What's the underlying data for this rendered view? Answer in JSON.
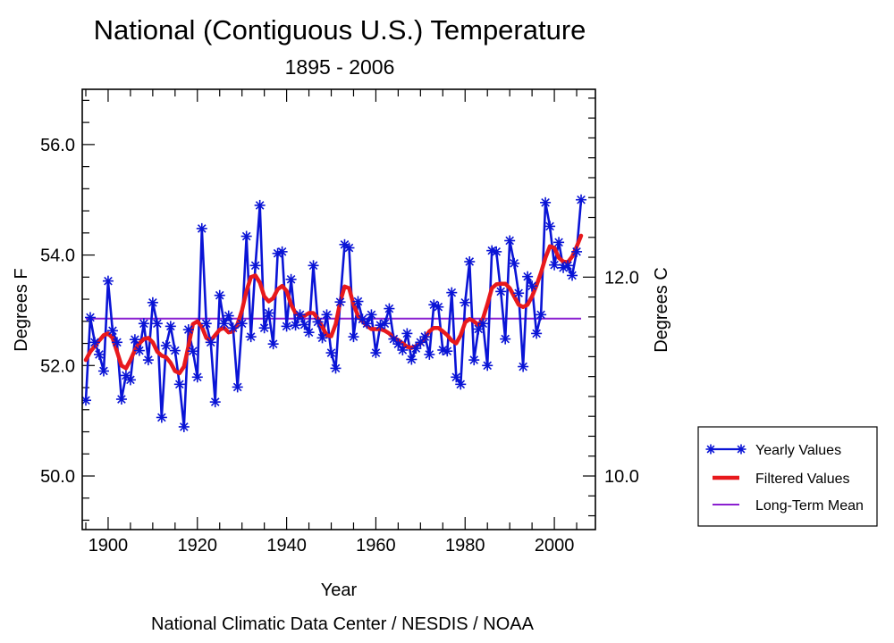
{
  "chart_data": {
    "type": "line",
    "title": "National (Contiguous U.S.) Temperature",
    "subtitle": "1895 - 2006",
    "xlabel": "Year",
    "ylabel": "Degrees F",
    "ylabel_right": "Degrees C",
    "credit": "National Climatic Data Center / NESDIS / NOAA",
    "xlim": [
      1894.2,
      2009.2
    ],
    "ylim": [
      49.03,
      57.0
    ],
    "x_ticks": [
      1900,
      1920,
      1940,
      1960,
      1980,
      2000
    ],
    "x_tick_labels": [
      "1900",
      "1920",
      "1940",
      "1960",
      "1980",
      "2000"
    ],
    "x_minor_step": 5,
    "y_ticks": [
      50.0,
      52.0,
      54.0,
      56.0
    ],
    "y_tick_labels": [
      "50.0",
      "52.0",
      "54.0",
      "56.0"
    ],
    "y_minor_step": 0.4,
    "y_right_ticks_c": [
      10.0,
      12.0
    ],
    "y_right_tick_labels": [
      "10.0",
      "12.0"
    ],
    "y_right_minor_step_c": 0.2,
    "grid": false,
    "legend": {
      "position": "right",
      "entries": [
        {
          "label": "Yearly Values",
          "color": "#0a14d6",
          "style": "line-star"
        },
        {
          "label": "Filtered Values",
          "color": "#e8191c",
          "style": "thick-line"
        },
        {
          "label": "Long-Term Mean",
          "color": "#8a1fd0",
          "style": "thin-line"
        }
      ]
    },
    "series": [
      {
        "name": "Yearly Values",
        "color": "#0a14d6",
        "x": [
          1895,
          1896,
          1897,
          1898,
          1899,
          1900,
          1901,
          1902,
          1903,
          1904,
          1905,
          1906,
          1907,
          1908,
          1909,
          1910,
          1911,
          1912,
          1913,
          1914,
          1915,
          1916,
          1917,
          1918,
          1919,
          1920,
          1921,
          1922,
          1923,
          1924,
          1925,
          1926,
          1927,
          1928,
          1929,
          1930,
          1931,
          1932,
          1933,
          1934,
          1935,
          1936,
          1937,
          1938,
          1939,
          1940,
          1941,
          1942,
          1943,
          1944,
          1945,
          1946,
          1947,
          1948,
          1949,
          1950,
          1951,
          1952,
          1953,
          1954,
          1955,
          1956,
          1957,
          1958,
          1959,
          1960,
          1961,
          1962,
          1963,
          1964,
          1965,
          1966,
          1967,
          1968,
          1969,
          1970,
          1971,
          1972,
          1973,
          1974,
          1975,
          1976,
          1977,
          1978,
          1979,
          1980,
          1981,
          1982,
          1983,
          1984,
          1985,
          1986,
          1987,
          1988,
          1989,
          1990,
          1991,
          1992,
          1993,
          1994,
          1995,
          1996,
          1997,
          1998,
          1999,
          2000,
          2001,
          2002,
          2003,
          2004,
          2005,
          2006
        ],
        "values": [
          51.37,
          52.87,
          52.42,
          52.2,
          51.9,
          53.53,
          52.63,
          52.42,
          51.39,
          51.82,
          51.74,
          52.47,
          52.27,
          52.76,
          52.1,
          53.14,
          52.76,
          51.06,
          52.36,
          52.71,
          52.27,
          51.66,
          50.89,
          52.65,
          52.26,
          51.79,
          54.48,
          52.76,
          52.42,
          51.34,
          53.27,
          52.76,
          52.9,
          52.68,
          51.61,
          52.76,
          54.34,
          52.52,
          53.81,
          54.9,
          52.68,
          52.95,
          52.39,
          54.03,
          54.06,
          52.71,
          53.56,
          52.73,
          52.92,
          52.74,
          52.6,
          53.81,
          52.79,
          52.5,
          52.92,
          52.23,
          51.95,
          53.15,
          54.19,
          54.13,
          52.52,
          53.16,
          52.84,
          52.76,
          52.92,
          52.23,
          52.73,
          52.76,
          53.03,
          52.48,
          52.39,
          52.28,
          52.58,
          52.11,
          52.31,
          52.42,
          52.52,
          52.2,
          53.1,
          53.06,
          52.28,
          52.26,
          53.32,
          51.79,
          51.66,
          53.14,
          53.88,
          52.1,
          52.66,
          52.76,
          52.0,
          54.08,
          54.06,
          53.34,
          52.48,
          54.26,
          53.85,
          53.31,
          51.98,
          53.61,
          53.44,
          52.58,
          52.92,
          54.95,
          54.52,
          53.82,
          54.23,
          53.77,
          53.81,
          53.63,
          54.06,
          55.0
        ]
      },
      {
        "name": "Filtered Values",
        "color": "#e8191c",
        "x": [
          1895,
          1896,
          1897,
          1898,
          1899,
          1900,
          1901,
          1902,
          1903,
          1904,
          1905,
          1906,
          1907,
          1908,
          1909,
          1910,
          1911,
          1912,
          1913,
          1914,
          1915,
          1916,
          1917,
          1918,
          1919,
          1920,
          1921,
          1922,
          1923,
          1924,
          1925,
          1926,
          1927,
          1928,
          1929,
          1930,
          1931,
          1932,
          1933,
          1934,
          1935,
          1936,
          1937,
          1938,
          1939,
          1940,
          1941,
          1942,
          1943,
          1944,
          1945,
          1946,
          1947,
          1948,
          1949,
          1950,
          1951,
          1952,
          1953,
          1954,
          1955,
          1956,
          1957,
          1958,
          1959,
          1960,
          1961,
          1962,
          1963,
          1964,
          1965,
          1966,
          1967,
          1968,
          1969,
          1970,
          1971,
          1972,
          1973,
          1974,
          1975,
          1976,
          1977,
          1978,
          1979,
          1980,
          1981,
          1982,
          1983,
          1984,
          1985,
          1986,
          1987,
          1988,
          1989,
          1990,
          1991,
          1992,
          1993,
          1994,
          1995,
          1996,
          1997,
          1998,
          1999,
          2000,
          2001,
          2002,
          2003,
          2004,
          2005,
          2006
        ],
        "values": [
          52.1,
          52.25,
          52.35,
          52.45,
          52.55,
          52.58,
          52.5,
          52.25,
          52.0,
          51.95,
          52.1,
          52.28,
          52.4,
          52.48,
          52.5,
          52.42,
          52.25,
          52.18,
          52.15,
          52.05,
          51.9,
          51.86,
          51.98,
          52.35,
          52.75,
          52.8,
          52.7,
          52.5,
          52.45,
          52.55,
          52.65,
          52.68,
          52.6,
          52.62,
          52.75,
          53.0,
          53.35,
          53.6,
          53.63,
          53.5,
          53.25,
          53.16,
          53.22,
          53.38,
          53.44,
          53.35,
          53.1,
          52.95,
          52.9,
          52.9,
          52.95,
          52.95,
          52.85,
          52.7,
          52.55,
          52.53,
          52.75,
          53.15,
          53.43,
          53.4,
          53.1,
          52.9,
          52.8,
          52.72,
          52.66,
          52.66,
          52.66,
          52.63,
          52.58,
          52.5,
          52.46,
          52.4,
          52.34,
          52.32,
          52.35,
          52.4,
          52.5,
          52.62,
          52.68,
          52.68,
          52.62,
          52.55,
          52.45,
          52.4,
          52.55,
          52.78,
          52.84,
          52.8,
          52.73,
          52.85,
          53.11,
          53.4,
          53.47,
          53.48,
          53.48,
          53.4,
          53.25,
          53.1,
          53.06,
          53.1,
          53.25,
          53.45,
          53.68,
          53.95,
          54.16,
          54.13,
          53.95,
          53.88,
          53.87,
          53.97,
          54.15,
          54.35
        ]
      },
      {
        "name": "Long-Term Mean",
        "color": "#8a1fd0",
        "x": [
          1895,
          2006
        ],
        "values": [
          52.85,
          52.85
        ]
      }
    ]
  }
}
